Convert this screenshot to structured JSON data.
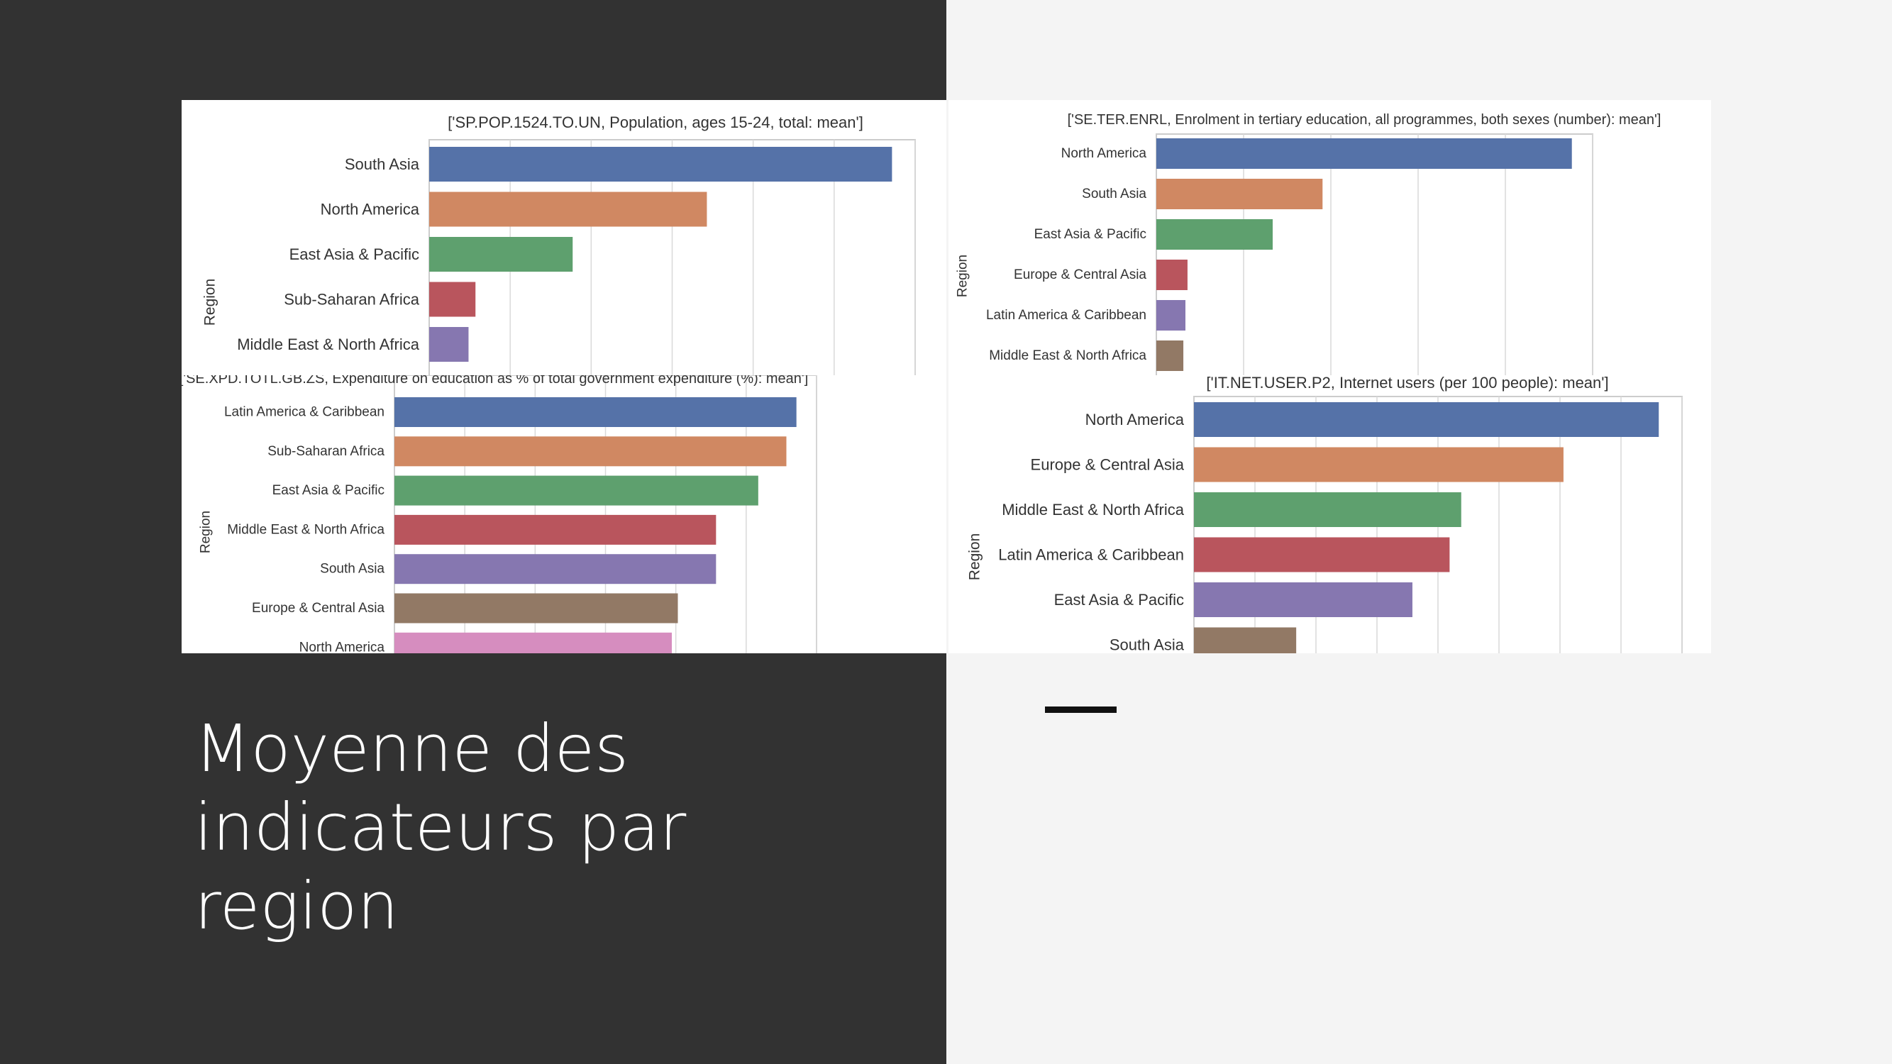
{
  "slide": {
    "title": "Moyenne des indicateurs par region",
    "colors": {
      "left_panel": "#323232",
      "right_panel": "#f4f4f4",
      "accent": "#111111"
    }
  },
  "palette": [
    "#5572a8",
    "#d08862",
    "#5ea06e",
    "#b9555d",
    "#8677b0",
    "#927965",
    "#d68dbf"
  ],
  "chart_data": [
    {
      "type": "bar",
      "orientation": "horizontal",
      "title": "['SP.POP.1524.TO.UN, Population, ages 15-24, total: mean']",
      "ylabel": "Region",
      "categories": [
        "South Asia",
        "North America",
        "East Asia & Pacific",
        "Sub-Saharan Africa",
        "Middle East & North Africa"
      ],
      "values": [
        100,
        60,
        31,
        10,
        8.5
      ],
      "xlim": [
        0,
        105
      ],
      "grid": true,
      "tick_labels_visible": false
    },
    {
      "type": "bar",
      "orientation": "horizontal",
      "title": "['SE.TER.ENRL, Enrolment in tertiary education, all programmes, both sexes (number): mean']",
      "ylabel": "Region",
      "categories": [
        "North America",
        "South Asia",
        "East Asia & Pacific",
        "Europe & Central Asia",
        "Latin America & Caribbean",
        "Middle East & North Africa"
      ],
      "values": [
        100,
        40,
        28,
        7.5,
        7,
        6.5
      ],
      "xlim": [
        0,
        105
      ],
      "grid": true,
      "tick_labels_visible": false
    },
    {
      "type": "bar",
      "orientation": "horizontal",
      "title": "['SE.XPD.TOTL.GB.ZS, Expenditure on education as % of total government expenditure (%): mean']",
      "ylabel": "Region",
      "categories": [
        "Latin America & Caribbean",
        "Sub-Saharan Africa",
        "East Asia & Pacific",
        "Middle East & North Africa",
        "South Asia",
        "Europe & Central Asia",
        "North America"
      ],
      "values": [
        100,
        97.5,
        90.5,
        80,
        80,
        70.5,
        69
      ],
      "xlim": [
        0,
        105
      ],
      "grid": true,
      "tick_labels_visible": false
    },
    {
      "type": "bar",
      "orientation": "horizontal",
      "title": "['IT.NET.USER.P2, Internet users (per 100 people): mean']",
      "ylabel": "Region",
      "categories": [
        "North America",
        "Europe & Central Asia",
        "Middle East & North Africa",
        "Latin America & Caribbean",
        "East Asia & Pacific",
        "South Asia"
      ],
      "values": [
        100,
        79.5,
        57.5,
        55,
        47,
        22
      ],
      "xlim": [
        0,
        105
      ],
      "grid": true,
      "tick_labels_visible": false
    }
  ]
}
